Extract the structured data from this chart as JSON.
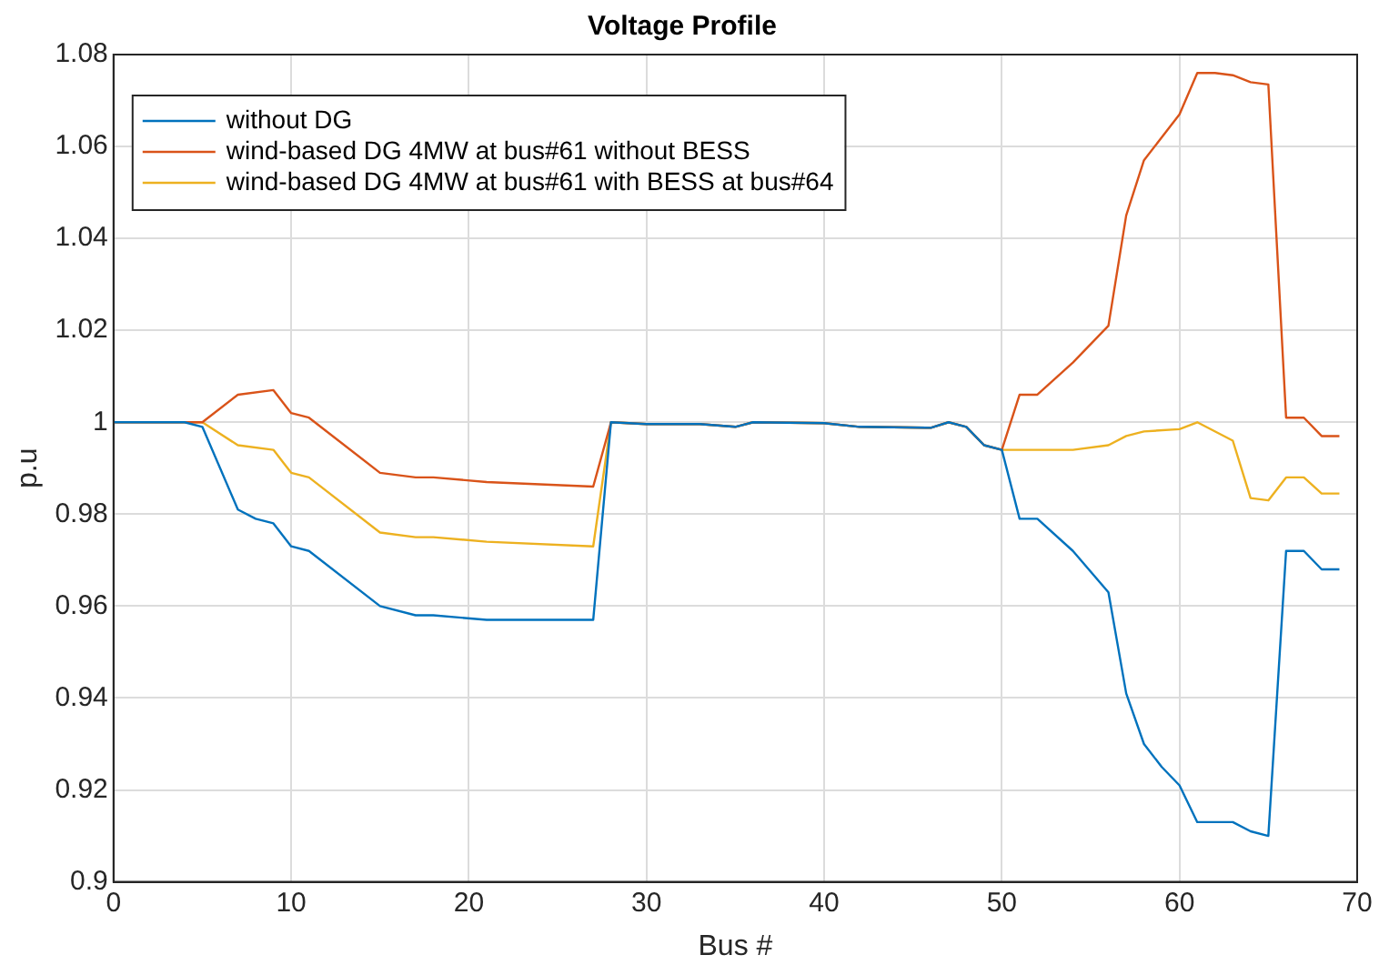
{
  "chart_data": {
    "type": "line",
    "title": "Voltage Profile",
    "xlabel": "Bus #",
    "ylabel": "p.u",
    "xlim": [
      0,
      70
    ],
    "xticks": [
      0,
      10,
      20,
      30,
      40,
      50,
      60,
      70
    ],
    "ylim": [
      0.9,
      1.08
    ],
    "yticks": [
      0.9,
      0.92,
      0.94,
      0.96,
      0.98,
      {
        "value": 1,
        "label": "1"
      },
      1.02,
      1.04,
      1.06,
      1.08
    ],
    "grid": true,
    "legend": "top left",
    "marker": "none",
    "line_style": "solid",
    "series": [
      {
        "name": "without DG",
        "color": "#0072bd",
        "x": [
          0,
          4,
          5,
          6,
          7,
          8,
          9,
          10,
          11,
          15,
          17,
          18,
          21,
          27,
          28,
          30,
          33,
          35,
          36,
          40,
          42,
          46,
          47,
          48,
          49,
          50,
          51,
          52,
          54,
          56,
          57,
          58,
          59,
          60,
          61,
          62,
          63,
          64,
          65,
          66,
          67,
          68,
          69
        ],
        "values": [
          1.0,
          1.0,
          0.999,
          0.99,
          0.981,
          0.979,
          0.978,
          0.973,
          0.972,
          0.96,
          0.958,
          0.958,
          0.957,
          0.957,
          1.0,
          0.9996,
          0.9996,
          0.999,
          1.0,
          0.9998,
          0.999,
          0.9988,
          1.0,
          0.999,
          0.995,
          0.994,
          0.979,
          0.979,
          0.972,
          0.963,
          0.941,
          0.93,
          0.925,
          0.921,
          0.913,
          0.913,
          0.913,
          0.911,
          0.91,
          0.972,
          0.972,
          0.968,
          0.968
        ]
      },
      {
        "name": "wind-based DG 4MW at bus#61 without BESS",
        "color": "#d95319",
        "x": [
          0,
          5,
          7,
          9,
          10,
          11,
          15,
          17,
          18,
          21,
          27,
          28,
          30,
          33,
          35,
          36,
          40,
          42,
          46,
          47,
          48,
          49,
          50,
          51,
          52,
          54,
          56,
          57,
          58,
          59,
          60,
          61,
          62,
          63,
          64,
          65,
          66,
          67,
          68,
          69
        ],
        "values": [
          1.0,
          1.0,
          1.006,
          1.007,
          1.002,
          1.001,
          0.989,
          0.988,
          0.988,
          0.987,
          0.986,
          1.0,
          0.9996,
          0.9996,
          0.999,
          1.0,
          0.9998,
          0.999,
          0.9988,
          1.0,
          0.999,
          0.995,
          0.994,
          1.006,
          1.006,
          1.013,
          1.021,
          1.045,
          1.057,
          1.062,
          1.067,
          1.076,
          1.076,
          1.0755,
          1.074,
          1.0735,
          1.001,
          1.001,
          0.997,
          0.997
        ]
      },
      {
        "name": "wind-based DG 4MW at bus#61 with BESS at bus#64",
        "color": "#edb120",
        "x": [
          0,
          5,
          7,
          9,
          10,
          11,
          15,
          17,
          18,
          21,
          27,
          28,
          30,
          33,
          35,
          36,
          40,
          42,
          46,
          47,
          48,
          49,
          50,
          51,
          54,
          56,
          57,
          58,
          60,
          61,
          63,
          64,
          65,
          66,
          67,
          68,
          69
        ],
        "values": [
          1.0,
          1.0,
          0.995,
          0.994,
          0.989,
          0.988,
          0.976,
          0.975,
          0.975,
          0.974,
          0.973,
          1.0,
          0.9996,
          0.9996,
          0.999,
          1.0,
          0.9998,
          0.999,
          0.9988,
          1.0,
          0.999,
          0.995,
          0.994,
          0.994,
          0.994,
          0.995,
          0.997,
          0.998,
          0.9985,
          1.0,
          0.996,
          0.9835,
          0.983,
          0.988,
          0.988,
          0.9845,
          0.9845
        ]
      }
    ]
  }
}
